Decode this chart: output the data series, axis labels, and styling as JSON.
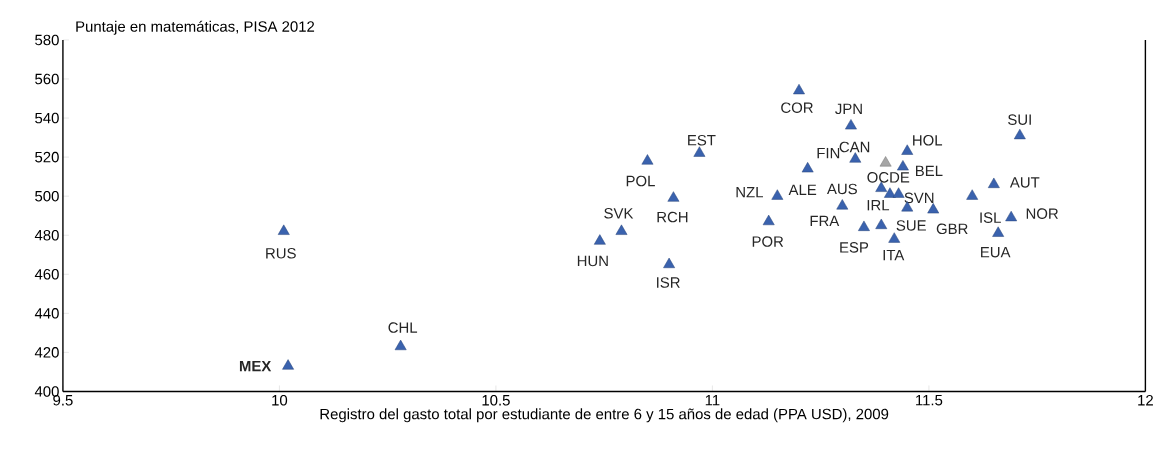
{
  "chart_data": {
    "type": "scatter",
    "xlabel": "Registro del gasto total por estudiante de entre 6 y 15 años de edad (PPA USD), 2009",
    "ylabel": "Puntaje en matemáticas, PISA 2012",
    "series": [
      {
        "color": "#3a62ae",
        "x": [
          10.01,
          10.02,
          10.28,
          10.74,
          10.79,
          10.85,
          10.91,
          10.9,
          10.97,
          11.2,
          11.32,
          11.71,
          11.45,
          11.33,
          11.44,
          11.22,
          11.65,
          11.39,
          11.41,
          11.43,
          11.15,
          11.6,
          11.3,
          11.45,
          11.51,
          11.69,
          11.66,
          11.13,
          11.39,
          11.35,
          11.42
        ],
        "values": [
          482,
          413,
          423,
          477,
          482,
          518,
          499,
          465,
          522,
          554,
          536,
          531,
          523,
          519,
          515,
          514,
          506,
          504,
          501,
          501,
          500,
          500,
          495,
          494,
          493,
          489,
          481,
          487,
          485,
          484,
          478
        ]
      },
      {
        "color": "#a6a6a6",
        "x": [
          11.4
        ],
        "values": [
          517
        ]
      }
    ],
    "marker": "triangle",
    "xlim": [
      9.5,
      12
    ],
    "xticks": [
      9.5,
      10,
      10.5,
      11,
      11.5,
      12
    ],
    "ylim": [
      400,
      580
    ],
    "yticks": [
      400,
      420,
      440,
      460,
      480,
      500,
      520,
      540,
      560,
      580
    ],
    "grid": false,
    "annotations": [
      {
        "text": "RUS",
        "x": 10.01,
        "y": 482
      },
      {
        "text": "**MEX**",
        "x": 10.02,
        "y": 413
      },
      {
        "text": "CHL",
        "x": 10.28,
        "y": 423
      },
      {
        "text": "HUN",
        "x": 10.74,
        "y": 477
      },
      {
        "text": "SVK",
        "x": 10.79,
        "y": 482
      },
      {
        "text": "POL",
        "x": 10.85,
        "y": 518
      },
      {
        "text": "RCH",
        "x": 10.91,
        "y": 499
      },
      {
        "text": "ISR",
        "x": 10.9,
        "y": 465
      },
      {
        "text": "EST",
        "x": 10.97,
        "y": 522
      },
      {
        "text": "COR",
        "x": 11.2,
        "y": 554
      },
      {
        "text": "JPN",
        "x": 11.32,
        "y": 536
      },
      {
        "text": "SUI",
        "x": 11.71,
        "y": 531
      },
      {
        "text": "HOL",
        "x": 11.45,
        "y": 523
      },
      {
        "text": "FIN",
        "x": 11.33,
        "y": 519
      },
      {
        "text": "BEL",
        "x": 11.44,
        "y": 515
      },
      {
        "text": "ALE",
        "x": 11.22,
        "y": 514
      },
      {
        "text": "AUT",
        "x": 11.65,
        "y": 506
      },
      {
        "text": "OCDE",
        "x": 11.39,
        "y": 504
      },
      {
        "text": "IRL",
        "x": 11.41,
        "y": 501
      },
      {
        "text": "NZL",
        "x": 11.15,
        "y": 500
      },
      {
        "text": "AUS",
        "x": 11.3,
        "y": 495
      },
      {
        "text": "FRA",
        "x": 11.3,
        "y": 495
      },
      {
        "text": "SVN",
        "x": 11.45,
        "y": 494
      },
      {
        "text": "GBR",
        "x": 11.51,
        "y": 493
      },
      {
        "text": "NOR",
        "x": 11.69,
        "y": 489
      },
      {
        "text": "ISL",
        "x": 11.69,
        "y": 489
      },
      {
        "text": "EUA",
        "x": 11.66,
        "y": 481
      },
      {
        "text": "POR",
        "x": 11.13,
        "y": 487
      },
      {
        "text": "SUE",
        "x": 11.39,
        "y": 485
      },
      {
        "text": "ESP",
        "x": 11.35,
        "y": 484
      },
      {
        "text": "ITA",
        "x": 11.42,
        "y": 478
      },
      {
        "text": "CAN",
        "x": 11.4,
        "y": 517
      }
    ]
  }
}
